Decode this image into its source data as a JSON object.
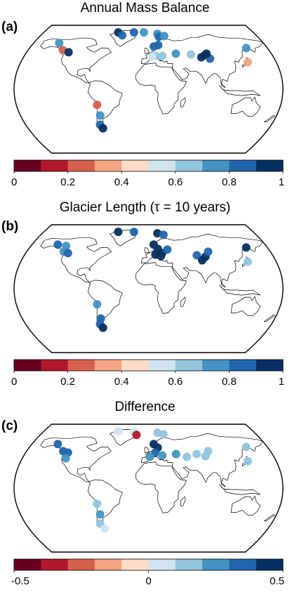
{
  "colors": {
    "seq": [
      "#67001f",
      "#b2182b",
      "#d6604d",
      "#f4a582",
      "#fddbc7",
      "#d1e5f0",
      "#92c5de",
      "#4393c3",
      "#2166ac",
      "#053061"
    ],
    "continent_fill": "#ffffff",
    "line": "#000000"
  },
  "chart_data": [
    {
      "label": "(a)",
      "type": "scatter",
      "title": "Annual Mass Balance",
      "colorbar": {
        "ticks": [
          "0",
          "0.2",
          "0.4",
          "0.6",
          "0.8",
          "1"
        ],
        "range": [
          0,
          1
        ]
      },
      "points": [
        {
          "lon": -52,
          "lat": 80,
          "v": 0.93
        },
        {
          "lon": -44,
          "lat": 76,
          "v": 0.88
        },
        {
          "lon": -25,
          "lat": 80,
          "v": 0.82
        },
        {
          "lon": -8,
          "lat": 80,
          "v": 0.75
        },
        {
          "lon": 15,
          "lat": 78,
          "v": 0.78
        },
        {
          "lon": 17,
          "lat": 74,
          "v": 0.85
        },
        {
          "lon": 26,
          "lat": 75,
          "v": 0.78
        },
        {
          "lon": -140,
          "lat": 65,
          "v": 0.72
        },
        {
          "lon": -128,
          "lat": 55,
          "v": 0.28
        },
        {
          "lon": -118,
          "lat": 52,
          "v": 0.9
        },
        {
          "lon": 8,
          "lat": 60,
          "v": 0.85
        },
        {
          "lon": 15,
          "lat": 62,
          "v": 0.8
        },
        {
          "lon": 10,
          "lat": 47,
          "v": 0.65
        },
        {
          "lon": 5,
          "lat": 46,
          "v": 0.56
        },
        {
          "lon": 20,
          "lat": 47,
          "v": 0.65
        },
        {
          "lon": 40,
          "lat": 50,
          "v": 0.75
        },
        {
          "lon": 62,
          "lat": 49,
          "v": 0.68
        },
        {
          "lon": 76,
          "lat": 45,
          "v": 0.9
        },
        {
          "lon": 82,
          "lat": 48,
          "v": 0.95
        },
        {
          "lon": 88,
          "lat": 43,
          "v": 0.85
        },
        {
          "lon": 85,
          "lat": 50,
          "v": 0.96
        },
        {
          "lon": 148,
          "lat": 58,
          "v": 0.78
        },
        {
          "lon": 140,
          "lat": 38,
          "v": 0.3
        },
        {
          "lon": -70,
          "lat": -22,
          "v": 0.28
        },
        {
          "lon": -68,
          "lat": -37,
          "v": 0.75
        },
        {
          "lon": -71,
          "lat": -50,
          "v": 0.88
        },
        {
          "lon": -68,
          "lat": -55,
          "v": 0.9
        }
      ]
    },
    {
      "label": "(b)",
      "type": "scatter",
      "title": "Glacier Length (τ = 10 years)",
      "colorbar": {
        "ticks": [
          "0",
          "0.2",
          "0.4",
          "0.6",
          "0.8",
          "1"
        ],
        "range": [
          0,
          1
        ]
      },
      "points": [
        {
          "lon": -52,
          "lat": 80,
          "v": 0.93
        },
        {
          "lon": -25,
          "lat": 80,
          "v": 0.88
        },
        {
          "lon": 15,
          "lat": 78,
          "v": 0.92
        },
        {
          "lon": 25,
          "lat": 76,
          "v": 0.85
        },
        {
          "lon": -140,
          "lat": 62,
          "v": 0.82
        },
        {
          "lon": -126,
          "lat": 60,
          "v": 0.75
        },
        {
          "lon": -125,
          "lat": 52,
          "v": 0.78
        },
        {
          "lon": -118,
          "lat": 50,
          "v": 0.8
        },
        {
          "lon": 8,
          "lat": 62,
          "v": 0.95
        },
        {
          "lon": 14,
          "lat": 56,
          "v": 0.96
        },
        {
          "lon": 10,
          "lat": 48,
          "v": 0.9
        },
        {
          "lon": 20,
          "lat": 50,
          "v": 0.92
        },
        {
          "lon": 28,
          "lat": 55,
          "v": 0.88
        },
        {
          "lon": 18,
          "lat": 46,
          "v": 0.93
        },
        {
          "lon": 70,
          "lat": 47,
          "v": 0.88
        },
        {
          "lon": 82,
          "lat": 45,
          "v": 0.92
        },
        {
          "lon": 88,
          "lat": 52,
          "v": 0.84
        },
        {
          "lon": 76,
          "lat": 40,
          "v": 0.9
        },
        {
          "lon": 148,
          "lat": 58,
          "v": 0.93
        },
        {
          "lon": 140,
          "lat": 38,
          "v": 0.68
        },
        {
          "lon": -70,
          "lat": -22,
          "v": 0.78
        },
        {
          "lon": -68,
          "lat": -42,
          "v": 0.88
        },
        {
          "lon": -71,
          "lat": -50,
          "v": 0.85
        },
        {
          "lon": -68,
          "lat": -55,
          "v": 0.9
        }
      ]
    },
    {
      "label": "(c)",
      "type": "scatter",
      "title": "Difference",
      "colorbar": {
        "ticks": [
          "-0.5",
          "0",
          "0.5"
        ],
        "range": [
          -0.5,
          0.5
        ]
      },
      "points": [
        {
          "lon": -52,
          "lat": 80,
          "v": 0.05
        },
        {
          "lon": -25,
          "lat": 80,
          "v": 0.08
        },
        {
          "lon": -20,
          "lat": 75,
          "v": -0.35
        },
        {
          "lon": 15,
          "lat": 78,
          "v": 0.18
        },
        {
          "lon": 25,
          "lat": 76,
          "v": 0.15
        },
        {
          "lon": -140,
          "lat": 62,
          "v": 0.32
        },
        {
          "lon": -126,
          "lat": 52,
          "v": 0.35
        },
        {
          "lon": -118,
          "lat": 50,
          "v": 0.38
        },
        {
          "lon": -118,
          "lat": 42,
          "v": 0.25
        },
        {
          "lon": 8,
          "lat": 62,
          "v": 0.45
        },
        {
          "lon": 14,
          "lat": 57,
          "v": 0.48
        },
        {
          "lon": 10,
          "lat": 50,
          "v": 0.3
        },
        {
          "lon": 20,
          "lat": 46,
          "v": 0.22
        },
        {
          "lon": 2,
          "lat": 44,
          "v": 0.28
        },
        {
          "lon": 40,
          "lat": 48,
          "v": 0.2
        },
        {
          "lon": 55,
          "lat": 44,
          "v": 0.15
        },
        {
          "lon": 70,
          "lat": 48,
          "v": 0.1
        },
        {
          "lon": 82,
          "lat": 45,
          "v": 0.12
        },
        {
          "lon": 88,
          "lat": 52,
          "v": 0.1
        },
        {
          "lon": 148,
          "lat": 58,
          "v": 0.15
        },
        {
          "lon": 140,
          "lat": 38,
          "v": 0.18
        },
        {
          "lon": -70,
          "lat": -22,
          "v": 0.12
        },
        {
          "lon": -68,
          "lat": -37,
          "v": 0.28
        },
        {
          "lon": -71,
          "lat": -50,
          "v": 0.1
        },
        {
          "lon": -66,
          "lat": -57,
          "v": 0.08
        }
      ]
    }
  ]
}
